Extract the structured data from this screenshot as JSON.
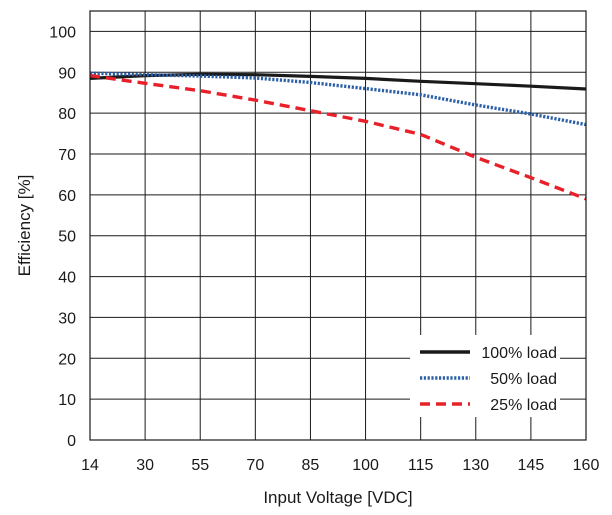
{
  "chart_data": {
    "type": "line",
    "xlabel": "Input Voltage [VDC]",
    "ylabel": "Efficiency [%]",
    "x_ticks": [
      "14",
      "30",
      "55",
      "70",
      "85",
      "100",
      "115",
      "130",
      "145",
      "160"
    ],
    "y_ticks": [
      "0",
      "10",
      "20",
      "30",
      "40",
      "50",
      "60",
      "70",
      "80",
      "90",
      "100"
    ],
    "ylim": [
      0,
      105
    ],
    "x_scale": "categorical, evenly spaced ticks",
    "grid": true,
    "legend_position": "bottom-right",
    "series": [
      {
        "name": "100% load",
        "color": "#1a1a1a",
        "style": "solid",
        "x": [
          "14",
          "30",
          "55",
          "70",
          "85",
          "100",
          "115",
          "130",
          "145",
          "160"
        ],
        "values": [
          88.5,
          89.2,
          89.5,
          89.4,
          89.0,
          88.5,
          87.8,
          87.2,
          86.6,
          85.9
        ]
      },
      {
        "name": "50% load",
        "color": "#2b5fa8",
        "style": "dotted",
        "x": [
          "14",
          "30",
          "55",
          "70",
          "85",
          "100",
          "115",
          "130",
          "145",
          "160"
        ],
        "values": [
          89.8,
          89.4,
          89.1,
          88.6,
          87.5,
          86.0,
          84.5,
          82.0,
          79.8,
          77.2
        ]
      },
      {
        "name": "25% load",
        "color": "#e8202a",
        "style": "dashed",
        "x": [
          "14",
          "30",
          "55",
          "70",
          "85",
          "100",
          "115",
          "130",
          "145",
          "160"
        ],
        "values": [
          89.2,
          87.3,
          85.5,
          83.2,
          80.6,
          78.0,
          74.8,
          69.2,
          64.2,
          59.0
        ]
      }
    ]
  }
}
